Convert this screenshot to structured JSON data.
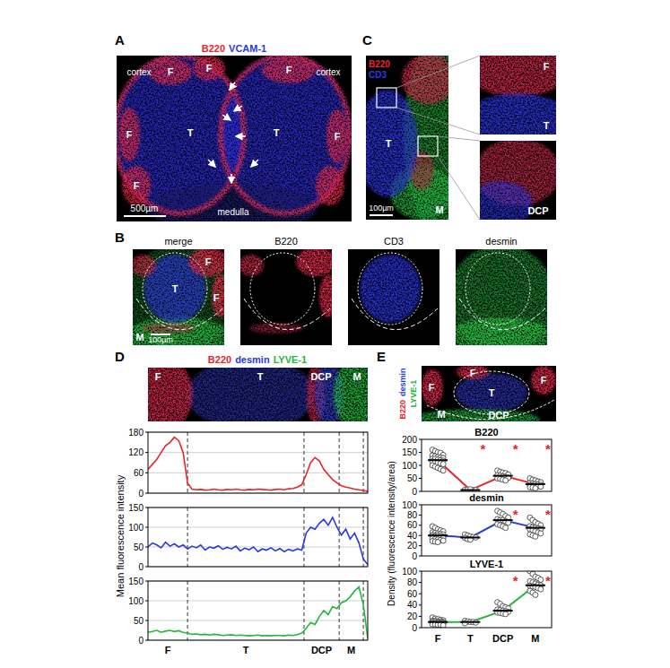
{
  "figure": {
    "panel_A": {
      "letter": "A",
      "stains": [
        {
          "text": "B220",
          "color": "#e8262a"
        },
        {
          "text": "VCAM-1",
          "color": "#2b3ae0"
        }
      ],
      "labels": [
        "cortex",
        "cortex",
        "medulla",
        "F",
        "F",
        "F",
        "F",
        "F",
        "F",
        "T",
        "T"
      ],
      "scale_bar": "500µm"
    },
    "panel_B": {
      "letter": "B",
      "titles": [
        "merge",
        "B220",
        "CD3",
        "desmin"
      ],
      "labels": [
        "F",
        "T",
        "F",
        "M"
      ],
      "scale_bar": "100µm"
    },
    "panel_C": {
      "letter": "C",
      "stains": [
        {
          "text": "B220",
          "color": "#e8262a"
        },
        {
          "text": "CD3",
          "color": "#2b3ae0"
        }
      ],
      "labels": [
        "T",
        "M"
      ],
      "inset_labels": [
        "F",
        "T",
        "DCP"
      ],
      "scale_bar": "100µm"
    },
    "panel_D": {
      "letter": "D",
      "stains": [
        {
          "text": "B220",
          "color": "#e8262a"
        },
        {
          "text": "desmin",
          "color": "#2b3ae0"
        },
        {
          "text": "LYVE-1",
          "color": "#22b83a"
        }
      ],
      "labels": [
        "F",
        "T",
        "DCP",
        "M"
      ],
      "ylabel": "Mean  fluorescence intensity"
    },
    "panel_E": {
      "letter": "E",
      "stains": [
        {
          "text": "B220",
          "color": "#e8262a"
        },
        {
          "text": "desmin",
          "color": "#2b3ae0"
        },
        {
          "text": "LYVE-1",
          "color": "#22b83a"
        }
      ],
      "labels": [
        "F",
        "F",
        "F",
        "T",
        "DCP",
        "M"
      ],
      "ylabel": "Density (fluorescence intensity/area)"
    }
  },
  "chart_data": [
    {
      "type": "line",
      "color": "#e8262a",
      "grid": true,
      "tick_labels": "y",
      "x": [
        0,
        2,
        4,
        6,
        8,
        10,
        12,
        14,
        16,
        18,
        20,
        22,
        24,
        26,
        28,
        30,
        32,
        34,
        36,
        38,
        40,
        42,
        44,
        46,
        48,
        50,
        52,
        54,
        56,
        58,
        60,
        62,
        64,
        66,
        68,
        70,
        72,
        74,
        76,
        78,
        80,
        82,
        84,
        86,
        88,
        90,
        92,
        94,
        96,
        98,
        100
      ],
      "values": [
        70,
        85,
        100,
        120,
        140,
        150,
        165,
        155,
        120,
        30,
        12,
        10,
        11,
        9,
        10,
        12,
        10,
        9,
        11,
        10,
        12,
        10,
        9,
        11,
        10,
        12,
        11,
        10,
        9,
        11,
        12,
        10,
        13,
        14,
        18,
        25,
        55,
        90,
        105,
        95,
        70,
        55,
        40,
        30,
        22,
        18,
        15,
        12,
        10,
        8,
        5
      ],
      "xlim": [
        0,
        100
      ],
      "ylim": [
        0,
        180
      ],
      "yticks": [
        0,
        60,
        120,
        180
      ],
      "boundaries": [
        18,
        71,
        87,
        98
      ]
    },
    {
      "type": "line",
      "color": "#2b3ae0",
      "grid": true,
      "tick_labels": "y",
      "x": [
        0,
        2,
        4,
        6,
        8,
        10,
        12,
        14,
        16,
        18,
        20,
        22,
        24,
        26,
        28,
        30,
        32,
        34,
        36,
        38,
        40,
        42,
        44,
        46,
        48,
        50,
        52,
        54,
        56,
        58,
        60,
        62,
        64,
        66,
        68,
        70,
        72,
        74,
        76,
        78,
        80,
        82,
        84,
        86,
        88,
        90,
        92,
        94,
        96,
        98,
        100
      ],
      "values": [
        50,
        60,
        55,
        48,
        62,
        52,
        58,
        50,
        55,
        45,
        52,
        48,
        55,
        42,
        50,
        47,
        53,
        44,
        49,
        45,
        52,
        40,
        47,
        43,
        50,
        38,
        45,
        42,
        48,
        40,
        46,
        38,
        44,
        40,
        45,
        42,
        85,
        100,
        95,
        110,
        120,
        105,
        125,
        100,
        80,
        95,
        70,
        85,
        60,
        20,
        5
      ],
      "xlim": [
        0,
        100
      ],
      "ylim": [
        0,
        150
      ],
      "yticks": [
        0,
        50,
        100,
        150
      ],
      "boundaries": [
        18,
        71,
        87,
        98
      ]
    },
    {
      "type": "line",
      "color": "#22b83a",
      "grid": true,
      "tick_labels": "y",
      "x": [
        0,
        2,
        4,
        6,
        8,
        10,
        12,
        14,
        16,
        18,
        20,
        22,
        24,
        26,
        28,
        30,
        32,
        34,
        36,
        38,
        40,
        42,
        44,
        46,
        48,
        50,
        52,
        54,
        56,
        58,
        60,
        62,
        64,
        66,
        68,
        70,
        72,
        74,
        76,
        78,
        80,
        82,
        84,
        86,
        88,
        90,
        92,
        94,
        96,
        98,
        100
      ],
      "values": [
        20,
        22,
        25,
        20,
        23,
        25,
        22,
        24,
        20,
        18,
        15,
        16,
        14,
        15,
        13,
        15,
        14,
        12,
        13,
        14,
        12,
        13,
        12,
        11,
        12,
        13,
        11,
        12,
        11,
        12,
        12,
        11,
        13,
        12,
        14,
        18,
        30,
        45,
        40,
        60,
        75,
        65,
        85,
        80,
        95,
        100,
        110,
        125,
        135,
        90,
        5
      ],
      "xlim": [
        0,
        100
      ],
      "ylim": [
        0,
        150
      ],
      "yticks": [
        0,
        50,
        100,
        150
      ],
      "boundaries": [
        18,
        71,
        87,
        98
      ],
      "region_labels": [
        {
          "label": "F",
          "x": 9
        },
        {
          "label": "T",
          "x": 44.5
        },
        {
          "label": "DCP",
          "x": 79
        },
        {
          "label": "M",
          "x": 92.5
        }
      ]
    },
    {
      "type": "scatter",
      "title": "B220",
      "color": "#e8262a",
      "tick_labels": "y",
      "categories": [
        "F",
        "T",
        "DCP",
        "M"
      ],
      "points": [
        [
          160,
          155,
          150,
          148,
          140,
          138,
          135,
          132,
          130,
          128,
          125,
          125,
          122,
          120,
          118,
          115,
          112,
          110,
          108,
          105,
          100,
          95,
          90,
          85,
          80
        ],
        [
          2,
          3,
          4,
          5,
          5,
          6,
          7,
          8
        ],
        [
          80,
          75,
          72,
          70,
          65,
          62,
          60,
          58,
          55,
          52,
          50,
          48,
          45,
          42
        ],
        [
          50,
          45,
          42,
          38,
          35,
          32,
          30,
          28,
          27,
          25,
          24,
          22,
          20,
          20,
          18,
          16,
          15,
          12
        ]
      ],
      "means": [
        120,
        5,
        60,
        28
      ],
      "ylim": [
        0,
        200
      ],
      "yticks": [
        0,
        50,
        100,
        150,
        200
      ],
      "annotations": [
        {
          "category": "T",
          "text": "*"
        },
        {
          "category": "DCP",
          "text": "*"
        },
        {
          "category": "M",
          "text": "*"
        }
      ]
    },
    {
      "type": "scatter",
      "title": "desmin",
      "color": "#2b3ae0",
      "tick_labels": "y",
      "categories": [
        "F",
        "T",
        "DCP",
        "M"
      ],
      "points": [
        [
          58,
          55,
          52,
          50,
          48,
          46,
          45,
          44,
          43,
          42,
          41,
          40,
          40,
          39,
          38,
          38,
          37,
          36,
          35,
          35,
          34,
          33,
          32,
          31,
          30,
          29,
          28,
          27
        ],
        [
          42,
          40,
          38,
          37,
          36,
          35,
          33,
          32
        ],
        [
          88,
          85,
          82,
          78,
          75,
          72,
          70,
          70,
          68,
          65,
          62,
          60,
          58,
          55
        ],
        [
          75,
          70,
          66,
          63,
          60,
          58,
          56,
          55,
          54,
          53,
          52,
          50,
          48,
          46,
          44,
          42,
          40,
          38
        ]
      ],
      "means": [
        40,
        36,
        70,
        55
      ],
      "ylim": [
        0,
        100
      ],
      "yticks": [
        0,
        20,
        40,
        60,
        80,
        100
      ],
      "annotations": [
        {
          "category": "DCP",
          "text": "*"
        },
        {
          "category": "M",
          "text": "*"
        }
      ]
    },
    {
      "type": "scatter",
      "title": "LYVE-1",
      "color": "#22b83a",
      "categories": [
        "F",
        "T",
        "DCP",
        "M"
      ],
      "points": [
        [
          18,
          16,
          15,
          14,
          13,
          12,
          12,
          11,
          11,
          10,
          10,
          10,
          9,
          9,
          9,
          8,
          8,
          8,
          7,
          7,
          6,
          6,
          5,
          5,
          4
        ],
        [
          12,
          11,
          10,
          10,
          9,
          8
        ],
        [
          45,
          42,
          38,
          36,
          34,
          32,
          31,
          30,
          29,
          28,
          27,
          26,
          25,
          24
        ],
        [
          100,
          95,
          90,
          88,
          85,
          82,
          80,
          78,
          76,
          75,
          74,
          73,
          72,
          70,
          68,
          65,
          62,
          58
        ]
      ],
      "means": [
        10,
        10,
        30,
        75
      ],
      "ylim": [
        0,
        100
      ],
      "yticks": [
        0,
        20,
        40,
        60,
        80,
        100
      ],
      "annotations": [
        {
          "category": "DCP",
          "text": "*"
        },
        {
          "category": "M",
          "text": "*"
        }
      ]
    }
  ]
}
